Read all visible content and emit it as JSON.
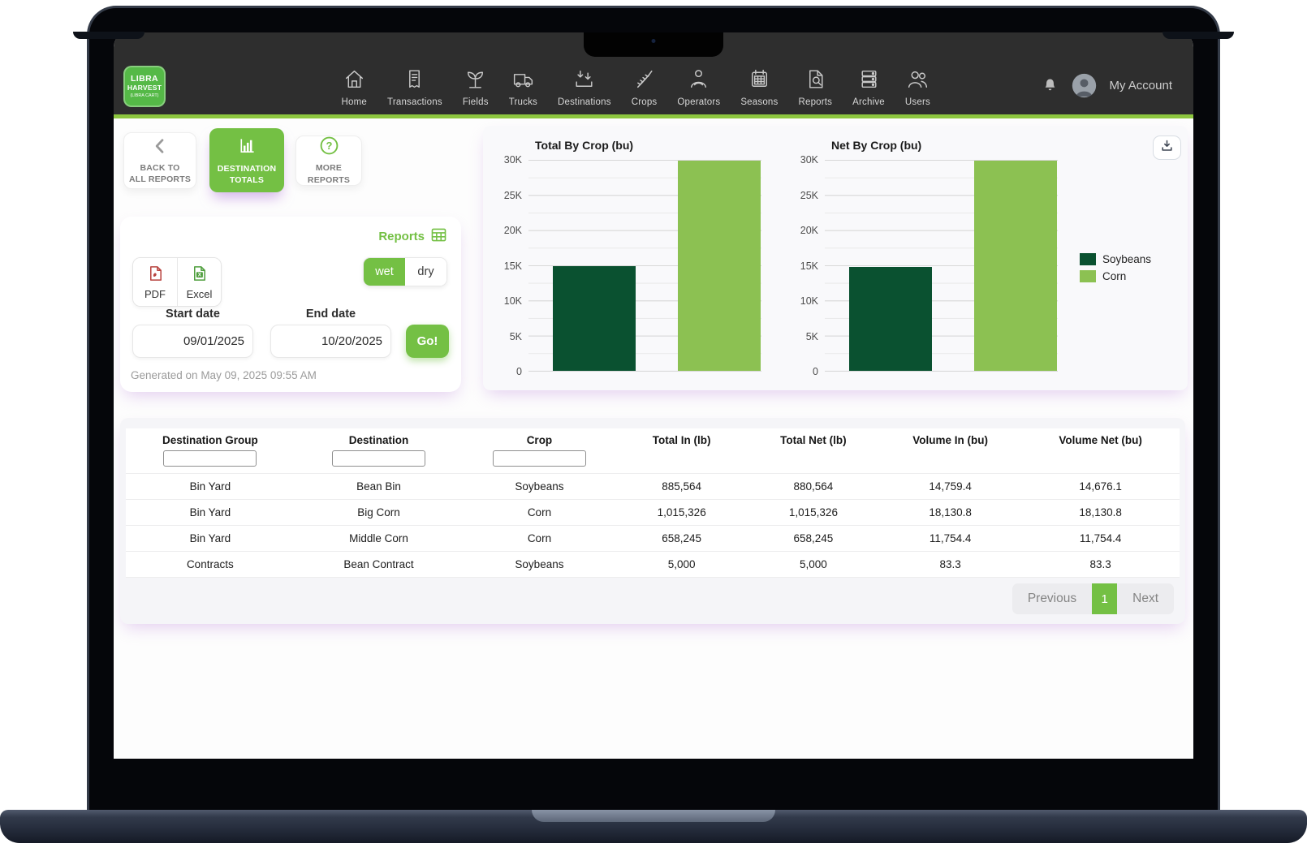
{
  "brand": {
    "line1": "LIBRA",
    "line2": "HARVEST",
    "line3": "(LIBRA CART)"
  },
  "nav": {
    "items": [
      {
        "label": "Home"
      },
      {
        "label": "Transactions"
      },
      {
        "label": "Fields"
      },
      {
        "label": "Trucks"
      },
      {
        "label": "Destinations"
      },
      {
        "label": "Crops"
      },
      {
        "label": "Operators"
      },
      {
        "label": "Seasons"
      },
      {
        "label": "Reports"
      },
      {
        "label": "Archive"
      },
      {
        "label": "Users"
      }
    ],
    "account_label": "My Account"
  },
  "report_buttons": {
    "back_line1": "BACK TO",
    "back_line2": "ALL REPORTS",
    "active_line1": "DESTINATION",
    "active_line2": "TOTALS",
    "more_line1": "MORE",
    "more_line2": "REPORTS"
  },
  "filter_card": {
    "title": "Reports",
    "pdf_label": "PDF",
    "excel_label": "Excel",
    "wet_label": "wet",
    "dry_label": "dry",
    "start_date_label": "Start date",
    "start_date_value": "09/01/2025",
    "end_date_label": "End date",
    "end_date_value": "10/20/2025",
    "go_label": "Go!",
    "generated_text": "Generated on May 09, 2025 09:55 AM"
  },
  "chart_data": [
    {
      "type": "bar",
      "title": "Total By Crop (bu)",
      "categories": [
        "Soybeans",
        "Corn"
      ],
      "values": [
        14842.7,
        29885.2
      ],
      "colors": [
        "#0a5130",
        "#8cc152"
      ],
      "ylim": [
        0,
        30000
      ],
      "ytick_labels": [
        "30K",
        "25K",
        "20K",
        "15K",
        "10K",
        "5K",
        "0"
      ],
      "grid": true,
      "legend_position": "right"
    },
    {
      "type": "bar",
      "title": "Net By Crop (bu)",
      "categories": [
        "Soybeans",
        "Corn"
      ],
      "values": [
        14759.4,
        29885.2
      ],
      "colors": [
        "#0a5130",
        "#8cc152"
      ],
      "ylim": [
        0,
        30000
      ],
      "ytick_labels": [
        "30K",
        "25K",
        "20K",
        "15K",
        "10K",
        "5K",
        "0"
      ],
      "grid": true,
      "legend_position": "right"
    }
  ],
  "legend": {
    "entries": [
      {
        "label": "Soybeans",
        "color": "#0a5130"
      },
      {
        "label": "Corn",
        "color": "#8cc152"
      }
    ]
  },
  "table": {
    "columns": [
      "Destination Group",
      "Destination",
      "Crop",
      "Total In (lb)",
      "Total Net (lb)",
      "Volume In (bu)",
      "Volume Net (bu)"
    ],
    "rows": [
      [
        "Bin Yard",
        "Bean Bin",
        "Soybeans",
        "885,564",
        "880,564",
        "14,759.4",
        "14,676.1"
      ],
      [
        "Bin Yard",
        "Big Corn",
        "Corn",
        "1,015,326",
        "1,015,326",
        "18,130.8",
        "18,130.8"
      ],
      [
        "Bin Yard",
        "Middle Corn",
        "Corn",
        "658,245",
        "658,245",
        "11,754.4",
        "11,754.4"
      ],
      [
        "Contracts",
        "Bean Contract",
        "Soybeans",
        "5,000",
        "5,000",
        "83.3",
        "83.3"
      ]
    ]
  },
  "pagination": {
    "previous_label": "Previous",
    "current_page": "1",
    "next_label": "Next"
  },
  "colors": {
    "accent_green": "#74c044",
    "header_rule_green": "#8dc63f",
    "soybeans": "#0a5130",
    "corn": "#8cc152",
    "header_bg": "#2e2e2e"
  }
}
